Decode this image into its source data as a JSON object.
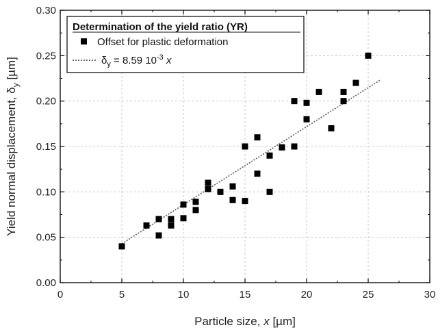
{
  "chart_data": {
    "type": "scatter",
    "title": "",
    "xlabel_prefix": "Particle size, ",
    "xlabel_var": "x",
    "xlabel_unit": " [µm]",
    "ylabel_prefix": "Yield normal displacement, δ",
    "ylabel_sub": "y",
    "ylabel_unit": " [µm]",
    "xlim": [
      0,
      30
    ],
    "ylim": [
      0,
      0.3
    ],
    "xticks": [
      0,
      5,
      10,
      15,
      20,
      25,
      30
    ],
    "xtick_labels": [
      "0",
      "5",
      "10",
      "15",
      "20",
      "25",
      "30"
    ],
    "yticks": [
      0.0,
      0.05,
      0.1,
      0.15,
      0.2,
      0.25,
      0.3
    ],
    "ytick_labels": [
      "0.00",
      "0.05",
      "0.10",
      "0.15",
      "0.20",
      "0.25",
      "0.30"
    ],
    "grid": true,
    "legend": {
      "position": "top-left",
      "title": "Determination of the yield ratio (YR)",
      "points_label": "Offset for plastic deformation",
      "fit_label_prefix": "δ",
      "fit_label_sub": "y",
      "fit_label_eq": " = 8.59 10",
      "fit_label_exp": "-3",
      "fit_label_var": " x"
    },
    "series": [
      {
        "name": "Offset for plastic deformation",
        "marker": "square",
        "color": "#000000",
        "x": [
          5,
          7,
          8,
          8,
          9,
          9,
          10,
          10,
          11,
          11,
          12,
          12,
          13,
          14,
          14,
          15,
          15,
          16,
          16,
          17,
          17,
          18,
          19,
          19,
          20,
          20,
          21,
          22,
          23,
          23,
          24,
          25
        ],
        "y": [
          0.04,
          0.063,
          0.07,
          0.052,
          0.07,
          0.063,
          0.086,
          0.071,
          0.089,
          0.08,
          0.11,
          0.103,
          0.1,
          0.106,
          0.091,
          0.15,
          0.09,
          0.16,
          0.12,
          0.14,
          0.1,
          0.149,
          0.2,
          0.15,
          0.198,
          0.18,
          0.21,
          0.17,
          0.21,
          0.2,
          0.22,
          0.25
        ]
      }
    ],
    "fit": {
      "name": "δy = 8.59 10-3 x",
      "style": "dotted",
      "color": "#666666",
      "slope": 0.00859,
      "x_range": [
        5,
        26
      ]
    }
  }
}
